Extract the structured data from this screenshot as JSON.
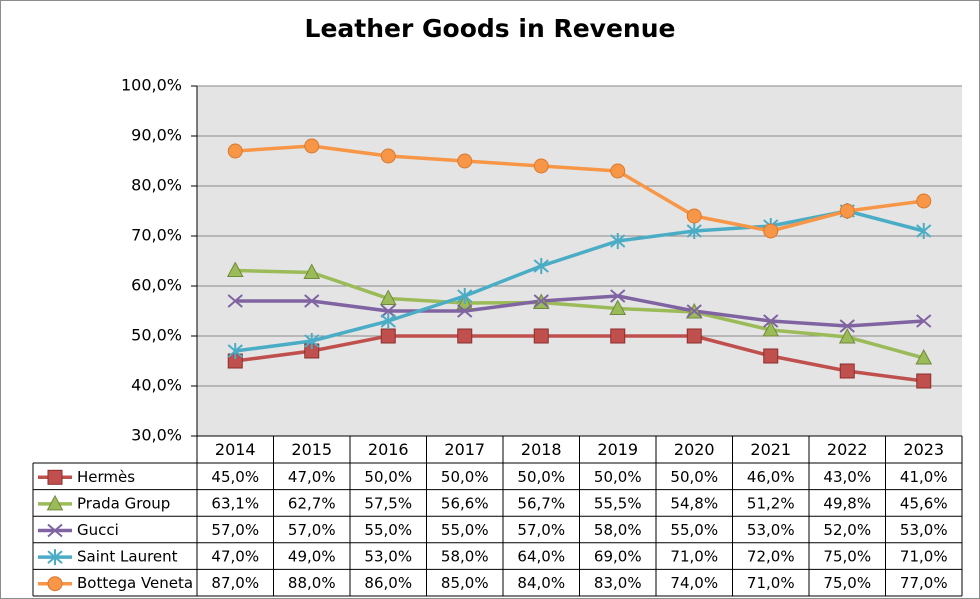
{
  "chart_data": {
    "type": "line",
    "title": "Leather Goods in Revenue",
    "categories": [
      "2014",
      "2015",
      "2016",
      "2017",
      "2018",
      "2019",
      "2020",
      "2021",
      "2022",
      "2023"
    ],
    "ylim": [
      30,
      100
    ],
    "y_ticks": [
      "30,0%",
      "40,0%",
      "50,0%",
      "60,0%",
      "70,0%",
      "80,0%",
      "90,0%",
      "100,0%"
    ],
    "grid": true,
    "legend": "data-table-left",
    "series": [
      {
        "name": "Hermès",
        "color": "#c0504d",
        "marker": "square",
        "values": [
          45.0,
          47.0,
          50.0,
          50.0,
          50.0,
          50.0,
          50.0,
          46.0,
          43.0,
          41.0
        ],
        "labels": [
          "45,0%",
          "47,0%",
          "50,0%",
          "50,0%",
          "50,0%",
          "50,0%",
          "50,0%",
          "46,0%",
          "43,0%",
          "41,0%"
        ]
      },
      {
        "name": "Prada Group",
        "color": "#9bbb59",
        "marker": "triangle",
        "values": [
          63.1,
          62.7,
          57.5,
          56.6,
          56.7,
          55.5,
          54.8,
          51.2,
          49.8,
          45.6
        ],
        "labels": [
          "63,1%",
          "62,7%",
          "57,5%",
          "56,6%",
          "56,7%",
          "55,5%",
          "54,8%",
          "51,2%",
          "49,8%",
          "45,6%"
        ]
      },
      {
        "name": "Gucci",
        "color": "#8064a2",
        "marker": "x",
        "values": [
          57.0,
          57.0,
          55.0,
          55.0,
          57.0,
          58.0,
          55.0,
          53.0,
          52.0,
          53.0
        ],
        "labels": [
          "57,0%",
          "57,0%",
          "55,0%",
          "55,0%",
          "57,0%",
          "58,0%",
          "55,0%",
          "53,0%",
          "52,0%",
          "53,0%"
        ]
      },
      {
        "name": "Saint Laurent",
        "color": "#4bacc6",
        "marker": "star",
        "values": [
          47.0,
          49.0,
          53.0,
          58.0,
          64.0,
          69.0,
          71.0,
          72.0,
          75.0,
          71.0
        ],
        "labels": [
          "47,0%",
          "49,0%",
          "53,0%",
          "58,0%",
          "64,0%",
          "69,0%",
          "71,0%",
          "72,0%",
          "75,0%",
          "71,0%"
        ]
      },
      {
        "name": "Bottega Veneta",
        "color": "#f79646",
        "marker": "circle",
        "values": [
          87.0,
          88.0,
          86.0,
          85.0,
          84.0,
          83.0,
          74.0,
          71.0,
          75.0,
          77.0
        ],
        "labels": [
          "87,0%",
          "88,0%",
          "86,0%",
          "85,0%",
          "84,0%",
          "83,0%",
          "74,0%",
          "71,0%",
          "75,0%",
          "77,0%"
        ]
      }
    ]
  }
}
